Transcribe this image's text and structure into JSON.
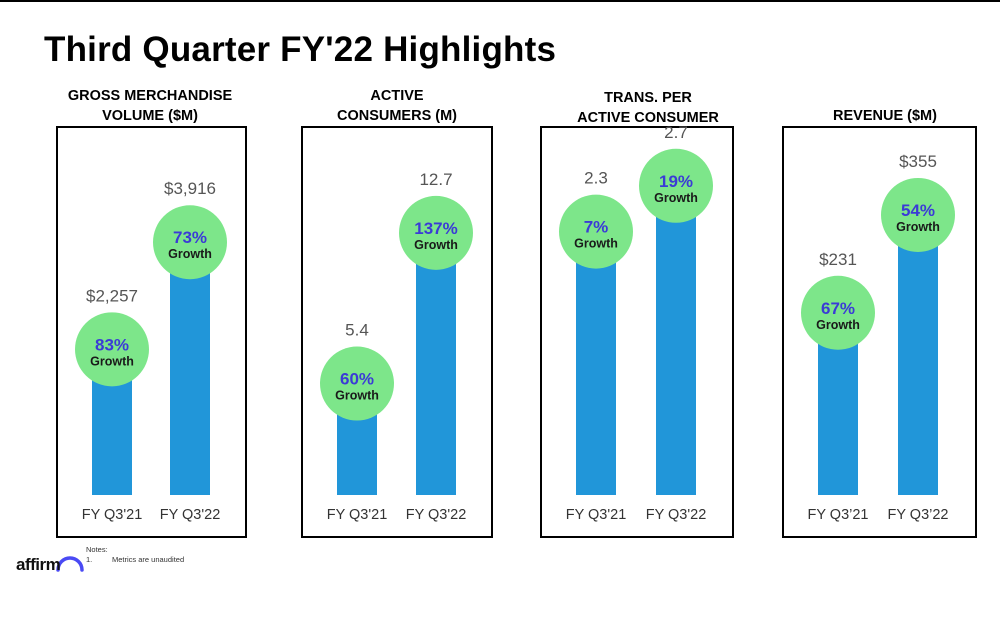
{
  "page": {
    "title": "Third Quarter FY'22 Highlights",
    "notes": {
      "heading": "Notes:",
      "items": [
        {
          "num": "1.",
          "text": "Metrics are unaudited"
        }
      ]
    },
    "logo_text": "affirm"
  },
  "colors": {
    "bar": "#2196d9",
    "bubble": "#7de68a",
    "growth_pct": "#3b3bd6",
    "growth_word": "#1a1a1a",
    "value_label": "#555555",
    "axis_label": "#333333",
    "logo_arc": "#4a4af4"
  },
  "chart_data": [
    {
      "type": "bar",
      "title_lines": [
        "GROSS MERCHANDISE",
        "VOLUME ($M)"
      ],
      "categories": [
        "FY Q3'21",
        "FY Q3'22"
      ],
      "values": [
        2257,
        3916
      ],
      "value_labels": [
        "$2,257",
        "$3,916"
      ],
      "growth": [
        {
          "pct": "83%",
          "label": "Growth"
        },
        {
          "pct": "73%",
          "label": "Growth"
        }
      ],
      "ylim": [
        0,
        5500
      ]
    },
    {
      "type": "bar",
      "title_lines": [
        "ACTIVE",
        "CONSUMERS (M)"
      ],
      "categories": [
        "FY Q3'21",
        "FY Q3'22"
      ],
      "values": [
        5.4,
        12.7
      ],
      "value_labels": [
        "5.4",
        "12.7"
      ],
      "growth": [
        {
          "pct": "60%",
          "label": "Growth"
        },
        {
          "pct": "137%",
          "label": "Growth"
        }
      ],
      "ylim": [
        0,
        17.2
      ]
    },
    {
      "type": "bar",
      "title_lines": [
        "TRANS. PER",
        "ACTIVE CONSUMER"
      ],
      "categories": [
        "FY Q3'21",
        "FY Q3'22"
      ],
      "values": [
        2.3,
        2.7
      ],
      "value_labels": [
        "2.3",
        "2.7"
      ],
      "growth": [
        {
          "pct": "7%",
          "label": "Growth"
        },
        {
          "pct": "19%",
          "label": "Growth"
        }
      ],
      "ylim": [
        0,
        3.1
      ]
    },
    {
      "type": "bar",
      "title_lines": [
        "REVENUE ($M)"
      ],
      "categories": [
        "FY Q3’21",
        "FY Q3’22"
      ],
      "values": [
        231,
        355
      ],
      "value_labels": [
        "$231",
        "$355"
      ],
      "growth": [
        {
          "pct": "67%",
          "label": "Growth"
        },
        {
          "pct": "54%",
          "label": "Growth"
        }
      ],
      "ylim": [
        0,
        450
      ]
    }
  ]
}
